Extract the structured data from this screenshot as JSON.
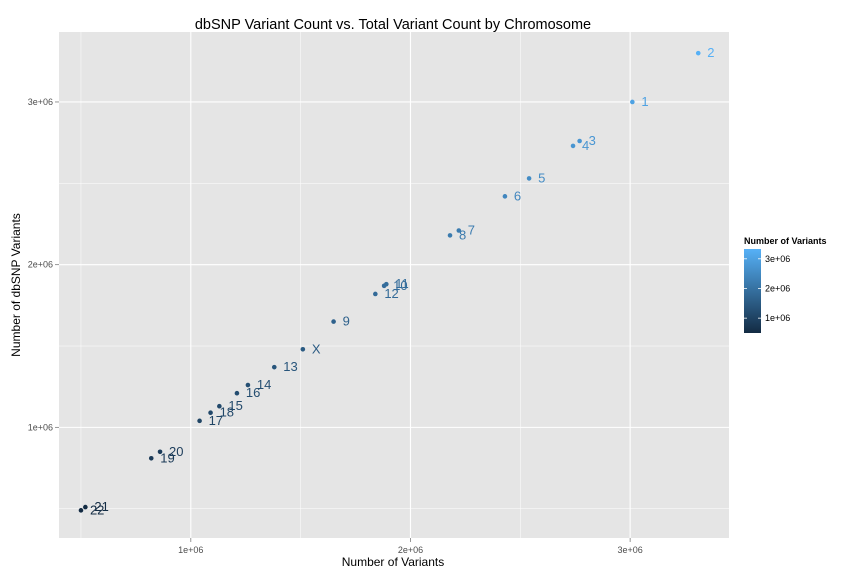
{
  "chart_data": {
    "type": "scatter",
    "title": "dbSNP Variant Count vs. Total Variant Count by Chromosome",
    "xlabel": "Number of Variants",
    "ylabel": "Number of dbSNP Variants",
    "xlim": [
      400000,
      3450000
    ],
    "ylim": [
      320000,
      3430000
    ],
    "x_ticks": [
      1000000,
      2000000,
      3000000
    ],
    "x_tick_labels": [
      "1e+06",
      "2e+06",
      "3e+06"
    ],
    "y_ticks": [
      1000000,
      2000000,
      3000000
    ],
    "y_tick_labels": [
      "1e+06",
      "2e+06",
      "3e+06"
    ],
    "grid": true,
    "panel_background": "#e5e5e5",
    "grid_color": "#ffffff",
    "legend": {
      "title": "Number of Variants",
      "position": "right",
      "min_value": 500000,
      "max_value": 3330000,
      "low_color": "#132b43",
      "high_color": "#56b1f7",
      "breaks": [
        1000000,
        2000000,
        3000000
      ],
      "break_labels": [
        "1e+06",
        "2e+06",
        "3e+06"
      ]
    },
    "points": [
      {
        "label": "1",
        "x": 3010000,
        "y": 3000000
      },
      {
        "label": "2",
        "x": 3310000,
        "y": 3300000
      },
      {
        "label": "3",
        "x": 2770000,
        "y": 2760000
      },
      {
        "label": "4",
        "x": 2740000,
        "y": 2730000
      },
      {
        "label": "5",
        "x": 2540000,
        "y": 2530000
      },
      {
        "label": "6",
        "x": 2430000,
        "y": 2420000
      },
      {
        "label": "7",
        "x": 2220000,
        "y": 2210000
      },
      {
        "label": "8",
        "x": 2180000,
        "y": 2180000
      },
      {
        "label": "9",
        "x": 1650000,
        "y": 1650000
      },
      {
        "label": "10",
        "x": 1880000,
        "y": 1870000
      },
      {
        "label": "11",
        "x": 1890000,
        "y": 1880000
      },
      {
        "label": "12",
        "x": 1840000,
        "y": 1820000
      },
      {
        "label": "13",
        "x": 1380000,
        "y": 1370000
      },
      {
        "label": "14",
        "x": 1260000,
        "y": 1260000
      },
      {
        "label": "15",
        "x": 1130000,
        "y": 1130000
      },
      {
        "label": "16",
        "x": 1210000,
        "y": 1210000
      },
      {
        "label": "17",
        "x": 1040000,
        "y": 1040000
      },
      {
        "label": "18",
        "x": 1090000,
        "y": 1090000
      },
      {
        "label": "19",
        "x": 820000,
        "y": 810000
      },
      {
        "label": "20",
        "x": 860000,
        "y": 850000
      },
      {
        "label": "21",
        "x": 520000,
        "y": 510000
      },
      {
        "label": "22",
        "x": 500000,
        "y": 490000
      },
      {
        "label": "X",
        "x": 1510000,
        "y": 1480000
      }
    ]
  }
}
